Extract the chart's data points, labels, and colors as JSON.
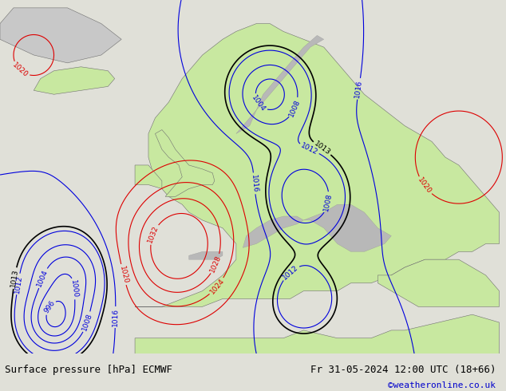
{
  "title_left": "Surface pressure [hPa] ECMWF",
  "title_right": "Fr 31-05-2024 12:00 UTC (18+66)",
  "credit": "©weatheronline.co.uk",
  "sea_color": "#d8e4ee",
  "land_color": "#c8e8a0",
  "mountain_color": "#b8b8b8",
  "bottom_bg": "#e0e0d8",
  "contour_blue_color": "#0000dd",
  "contour_red_color": "#dd0000",
  "contour_black_color": "#000000",
  "label_fontsize": 6.5,
  "title_fontsize": 9,
  "credit_fontsize": 8
}
